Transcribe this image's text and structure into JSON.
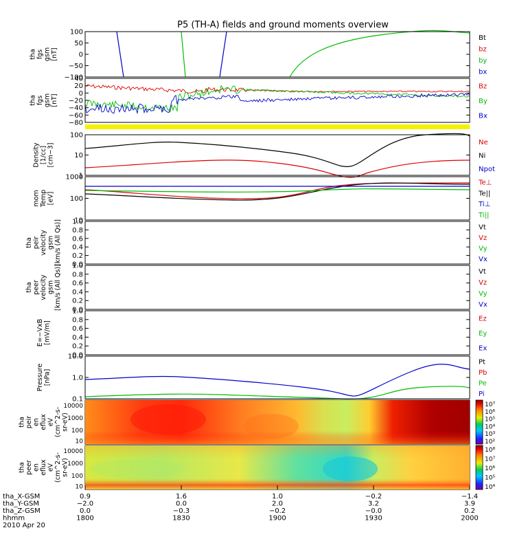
{
  "figure": {
    "title": "P5 (TH-A) fields and ground moments overview",
    "date": "2010 Apr 20"
  },
  "chart_data": [
    {
      "type": "line",
      "panel": "fgs-gsm",
      "ylabel_lines": [
        "tha",
        "fgs",
        "gsm",
        "[nT]"
      ],
      "ylim": [
        -100,
        100
      ],
      "yticks": [
        "100",
        "50",
        "0",
        "−50",
        "−100"
      ],
      "legend": [
        {
          "name": "Bt",
          "color": "#000000"
        },
        {
          "name": "bz",
          "color": "#dd0000"
        },
        {
          "name": "by",
          "color": "#00bb00"
        },
        {
          "name": "bx",
          "color": "#0000cc"
        }
      ]
    },
    {
      "type": "line",
      "panel": "fgs-gsm-zoom",
      "ylabel_lines": [
        "tha",
        "fgs",
        "gsm",
        "[nT]"
      ],
      "ylim": [
        -90,
        50
      ],
      "yticks": [
        "40",
        "20",
        "0",
        "−20",
        "−40",
        "−60",
        "−80"
      ],
      "legend": [
        {
          "name": "Bz",
          "color": "#dd0000"
        },
        {
          "name": "By",
          "color": "#00bb00"
        },
        {
          "name": "Bx",
          "color": "#0000cc"
        }
      ]
    },
    {
      "type": "line",
      "panel": "density",
      "ylabel_lines": [
        "Density",
        "[1/cc]",
        "[cm−3]"
      ],
      "scale": "log",
      "ylim": [
        0.5,
        200
      ],
      "yticks": [
        "100",
        "10",
        "1"
      ],
      "legend": [
        {
          "name": "Ne",
          "color": "#dd0000"
        },
        {
          "name": "Ni",
          "color": "#000000"
        },
        {
          "name": "Npot",
          "color": "#0000cc"
        }
      ]
    },
    {
      "type": "line",
      "panel": "temperature",
      "ylabel_lines": [
        "mom",
        "Temp",
        "[eV]"
      ],
      "scale": "log",
      "ylim": [
        10,
        1000
      ],
      "yticks": [
        "1000",
        "100",
        "10"
      ],
      "legend": [
        {
          "name": "Te⊥",
          "color": "#dd0000"
        },
        {
          "name": "Te||",
          "color": "#000000"
        },
        {
          "name": "Ti⊥",
          "color": "#0000cc"
        },
        {
          "name": "Ti||",
          "color": "#00bb00"
        }
      ]
    },
    {
      "type": "line",
      "panel": "peir-velocity",
      "ylabel_lines": [
        "tha",
        "peir",
        "velocity",
        "gsm",
        "[km/s (All Qs)]"
      ],
      "ylim": [
        0,
        1
      ],
      "yticks": [
        "1.0",
        "0.8",
        "0.6",
        "0.4",
        "0.2",
        "0.0"
      ],
      "legend": [
        {
          "name": "Vt",
          "color": "#000000"
        },
        {
          "name": "Vz",
          "color": "#dd0000"
        },
        {
          "name": "Vy",
          "color": "#00bb00"
        },
        {
          "name": "Vx",
          "color": "#0000cc"
        }
      ]
    },
    {
      "type": "line",
      "panel": "peer-velocity",
      "ylabel_lines": [
        "tha",
        "peer",
        "velocity",
        "gsm",
        "[km/s (All Qs)]"
      ],
      "ylim": [
        0,
        1
      ],
      "yticks": [
        "1.0",
        "0.8",
        "0.6",
        "0.4",
        "0.2",
        "0.0"
      ],
      "legend": [
        {
          "name": "Vt",
          "color": "#000000"
        },
        {
          "name": "Vz",
          "color": "#dd0000"
        },
        {
          "name": "Vy",
          "color": "#00bb00"
        },
        {
          "name": "Vx",
          "color": "#0000cc"
        }
      ]
    },
    {
      "type": "line",
      "panel": "efield",
      "ylabel_lines": [
        "E=−VxB",
        "[mV/m]"
      ],
      "ylim": [
        0,
        1
      ],
      "yticks": [
        "1.0",
        "0.8",
        "0.6",
        "0.4",
        "0.2",
        "0.0"
      ],
      "legend": [
        {
          "name": "Ez",
          "color": "#dd0000"
        },
        {
          "name": "Ey",
          "color": "#00bb00"
        },
        {
          "name": "Ex",
          "color": "#0000cc"
        }
      ]
    },
    {
      "type": "line",
      "panel": "pressure",
      "ylabel_lines": [
        "Pressure",
        "[nPa]"
      ],
      "scale": "log",
      "ylim": [
        0.04,
        20
      ],
      "yticks": [
        "10.0",
        "1.0",
        "0.1"
      ],
      "legend": [
        {
          "name": "Pt",
          "color": "#000000"
        },
        {
          "name": "Pb",
          "color": "#dd0000"
        },
        {
          "name": "Pe",
          "color": "#00bb00"
        },
        {
          "name": "Pi",
          "color": "#0000cc"
        }
      ]
    },
    {
      "type": "heatmap",
      "panel": "peir-spectrogram",
      "ylabel_lines": [
        "tha",
        "peir",
        "en",
        "eflux",
        "eV",
        "(cm^2-s-",
        "sr-eV)"
      ],
      "scale": "log",
      "ylim": [
        5,
        25000
      ],
      "yticks": [
        "10000",
        "1000",
        "100",
        "10"
      ],
      "colorbar_ticks": [
        "10⁷",
        "10⁶",
        "10⁵",
        "10⁴",
        "10³",
        "10²"
      ]
    },
    {
      "type": "heatmap",
      "panel": "peer-spectrogram",
      "ylabel_lines": [
        "tha",
        "peer",
        "en",
        "eflux",
        "eV",
        "(cm^2-s-",
        "sr-eV)"
      ],
      "scale": "log",
      "ylim": [
        5,
        25000
      ],
      "yticks": [
        "10000",
        "1000",
        "100",
        "10"
      ],
      "colorbar_ticks": [
        "10⁸",
        "10⁷",
        "10⁶",
        "10⁵",
        "10⁴"
      ]
    }
  ],
  "xaxis": {
    "rows": [
      {
        "label": "tha_X-GSM",
        "values": [
          "0.9",
          "1.6",
          "1.0",
          "−0.2",
          "−1.4"
        ]
      },
      {
        "label": "tha_Y-GSM",
        "values": [
          "−2.0",
          "0.0",
          "2.0",
          "3.2",
          "3.9"
        ]
      },
      {
        "label": "tha_Z-GSM",
        "values": [
          "0.0",
          "−0.3",
          "−0.2",
          "−0.0",
          "0.2"
        ]
      },
      {
        "label": "hhmm",
        "values": [
          "1800",
          "1830",
          "1900",
          "1930",
          "2000"
        ]
      }
    ]
  }
}
